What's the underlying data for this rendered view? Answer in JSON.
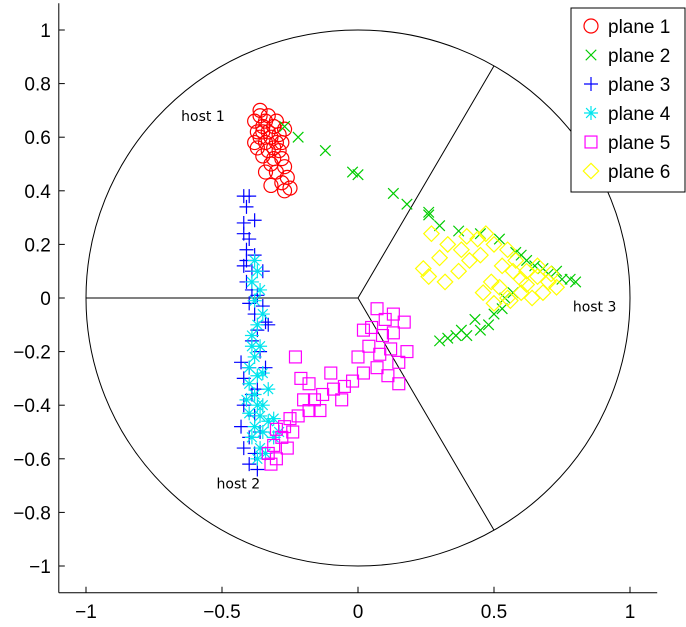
{
  "chart_data": {
    "type": "scatter",
    "xlim": [
      -1.1,
      1.1
    ],
    "ylim": [
      -1.1,
      1.1
    ],
    "x_ticks": [
      -1,
      -0.5,
      0,
      0.5,
      1
    ],
    "x_tick_labels": [
      "−1",
      "−0.5",
      "0",
      "0.5",
      "1"
    ],
    "y_ticks": [
      -1,
      -0.8,
      -0.6,
      -0.4,
      -0.2,
      0,
      0.2,
      0.4,
      0.6,
      0.8,
      1
    ],
    "y_tick_labels": [
      "−1",
      "−0.8",
      "−0.6",
      "−0.4",
      "−0.2",
      "0",
      "0.2",
      "0.4",
      "0.6",
      "0.8",
      "1"
    ],
    "grid": false,
    "legend_position": "top-right",
    "circle_radius": 1,
    "sector_angles_deg": [
      60,
      180,
      300
    ],
    "annotations": [
      {
        "text": "host 1",
        "x": -0.57,
        "y": 0.66
      },
      {
        "text": "host 2",
        "x": -0.44,
        "y": -0.71
      },
      {
        "text": "host 3",
        "x": 0.87,
        "y": -0.05
      }
    ],
    "series": [
      {
        "name": "plane 1",
        "marker": "circle",
        "color": "#ff0000",
        "points": [
          [
            -0.36,
            0.68
          ],
          [
            -0.34,
            0.66
          ],
          [
            -0.38,
            0.66
          ],
          [
            -0.35,
            0.64
          ],
          [
            -0.33,
            0.62
          ],
          [
            -0.37,
            0.62
          ],
          [
            -0.32,
            0.6
          ],
          [
            -0.36,
            0.6
          ],
          [
            -0.34,
            0.58
          ],
          [
            -0.3,
            0.58
          ],
          [
            -0.38,
            0.58
          ],
          [
            -0.33,
            0.55
          ],
          [
            -0.29,
            0.55
          ],
          [
            -0.35,
            0.53
          ],
          [
            -0.31,
            0.52
          ],
          [
            -0.28,
            0.52
          ],
          [
            -0.32,
            0.5
          ],
          [
            -0.27,
            0.49
          ],
          [
            -0.3,
            0.47
          ],
          [
            -0.34,
            0.47
          ],
          [
            -0.26,
            0.45
          ],
          [
            -0.28,
            0.43
          ],
          [
            -0.25,
            0.41
          ],
          [
            -0.32,
            0.42
          ],
          [
            -0.27,
            0.4
          ],
          [
            -0.35,
            0.62
          ],
          [
            -0.31,
            0.64
          ],
          [
            -0.29,
            0.61
          ],
          [
            -0.37,
            0.56
          ],
          [
            -0.33,
            0.68
          ],
          [
            -0.3,
            0.66
          ],
          [
            -0.27,
            0.63
          ],
          [
            -0.28,
            0.58
          ],
          [
            -0.31,
            0.56
          ],
          [
            -0.36,
            0.7
          ]
        ]
      },
      {
        "name": "plane 2",
        "marker": "x",
        "color": "#00cc00",
        "points": [
          [
            -0.27,
            0.64
          ],
          [
            -0.22,
            0.6
          ],
          [
            -0.12,
            0.55
          ],
          [
            -0.02,
            0.47
          ],
          [
            0.0,
            0.46
          ],
          [
            0.13,
            0.39
          ],
          [
            0.18,
            0.35
          ],
          [
            0.26,
            0.31
          ],
          [
            0.26,
            0.32
          ],
          [
            0.3,
            0.27
          ],
          [
            0.37,
            0.25
          ],
          [
            0.45,
            0.24
          ],
          [
            0.52,
            0.22
          ],
          [
            0.58,
            0.17
          ],
          [
            0.62,
            0.14
          ],
          [
            0.68,
            0.11
          ],
          [
            0.73,
            0.1
          ],
          [
            0.78,
            0.07
          ],
          [
            0.8,
            0.06
          ],
          [
            0.75,
            0.07
          ],
          [
            0.7,
            0.09
          ],
          [
            0.65,
            0.12
          ],
          [
            0.57,
            0.02
          ],
          [
            0.54,
            0.0
          ],
          [
            0.53,
            -0.04
          ],
          [
            0.5,
            -0.06
          ],
          [
            0.48,
            -0.1
          ],
          [
            0.45,
            -0.12
          ],
          [
            0.4,
            -0.14
          ],
          [
            0.36,
            -0.14
          ],
          [
            0.33,
            -0.15
          ],
          [
            0.3,
            -0.16
          ],
          [
            0.38,
            -0.12
          ],
          [
            0.43,
            -0.08
          ],
          [
            0.6,
            0.16
          ]
        ]
      },
      {
        "name": "plane 3",
        "marker": "plus",
        "color": "#0000ff",
        "points": [
          [
            -0.42,
            0.38
          ],
          [
            -0.4,
            0.38
          ],
          [
            -0.41,
            0.34
          ],
          [
            -0.38,
            0.29
          ],
          [
            -0.42,
            0.28
          ],
          [
            -0.42,
            0.24
          ],
          [
            -0.4,
            0.22
          ],
          [
            -0.41,
            0.18
          ],
          [
            -0.38,
            0.16
          ],
          [
            -0.42,
            0.12
          ],
          [
            -0.39,
            0.1
          ],
          [
            -0.35,
            0.1
          ],
          [
            -0.41,
            0.06
          ],
          [
            -0.39,
            0.03
          ],
          [
            -0.37,
            0.01
          ],
          [
            -0.4,
            -0.02
          ],
          [
            -0.35,
            -0.03
          ],
          [
            -0.38,
            -0.06
          ],
          [
            -0.34,
            -0.09
          ],
          [
            -0.37,
            -0.12
          ],
          [
            -0.39,
            -0.16
          ],
          [
            -0.36,
            -0.2
          ],
          [
            -0.34,
            -0.26
          ],
          [
            -0.4,
            -0.26
          ],
          [
            -0.42,
            -0.3
          ],
          [
            -0.37,
            -0.34
          ],
          [
            -0.42,
            -0.4
          ],
          [
            -0.38,
            -0.44
          ],
          [
            -0.43,
            -0.48
          ],
          [
            -0.4,
            -0.52
          ],
          [
            -0.42,
            -0.56
          ],
          [
            -0.38,
            -0.58
          ],
          [
            -0.4,
            -0.62
          ],
          [
            -0.37,
            -0.64
          ],
          [
            -0.33,
            -0.1
          ],
          [
            -0.41,
            0.14
          ],
          [
            -0.39,
            -0.36
          ],
          [
            -0.36,
            -0.5
          ],
          [
            -0.43,
            -0.24
          ]
        ]
      },
      {
        "name": "plane 4",
        "marker": "asterisk",
        "color": "#00e5ee",
        "points": [
          [
            -0.38,
            0.14
          ],
          [
            -0.37,
            0.1
          ],
          [
            -0.39,
            0.06
          ],
          [
            -0.36,
            0.03
          ],
          [
            -0.38,
            -0.01
          ],
          [
            -0.35,
            -0.06
          ],
          [
            -0.37,
            -0.1
          ],
          [
            -0.39,
            -0.14
          ],
          [
            -0.36,
            -0.18
          ],
          [
            -0.38,
            -0.22
          ],
          [
            -0.4,
            -0.26
          ],
          [
            -0.37,
            -0.29
          ],
          [
            -0.4,
            -0.32
          ],
          [
            -0.38,
            -0.36
          ],
          [
            -0.41,
            -0.38
          ],
          [
            -0.37,
            -0.4
          ],
          [
            -0.4,
            -0.43
          ],
          [
            -0.36,
            -0.44
          ],
          [
            -0.38,
            -0.48
          ],
          [
            -0.35,
            -0.5
          ],
          [
            -0.39,
            -0.52
          ],
          [
            -0.36,
            -0.56
          ],
          [
            -0.34,
            -0.58
          ],
          [
            -0.31,
            -0.52
          ],
          [
            -0.33,
            -0.46
          ],
          [
            -0.35,
            -0.4
          ],
          [
            -0.33,
            -0.34
          ],
          [
            -0.35,
            -0.28
          ],
          [
            -0.31,
            -0.45
          ],
          [
            -0.29,
            -0.5
          ],
          [
            -0.37,
            -0.6
          ],
          [
            -0.39,
            -0.18
          ]
        ]
      },
      {
        "name": "plane 5",
        "marker": "square",
        "color": "#ff00ff",
        "points": [
          [
            0.07,
            -0.04
          ],
          [
            0.1,
            -0.08
          ],
          [
            0.13,
            -0.06
          ],
          [
            0.17,
            -0.09
          ],
          [
            0.05,
            -0.11
          ],
          [
            0.02,
            -0.12
          ],
          [
            0.09,
            -0.14
          ],
          [
            0.13,
            -0.13
          ],
          [
            0.04,
            -0.18
          ],
          [
            0.08,
            -0.21
          ],
          [
            0.12,
            -0.19
          ],
          [
            0.18,
            -0.2
          ],
          [
            0.15,
            -0.24
          ],
          [
            0.07,
            -0.26
          ],
          [
            0.02,
            -0.28
          ],
          [
            -0.02,
            -0.31
          ],
          [
            -0.05,
            -0.33
          ],
          [
            -0.09,
            -0.34
          ],
          [
            -0.13,
            -0.36
          ],
          [
            -0.16,
            -0.38
          ],
          [
            -0.2,
            -0.38
          ],
          [
            -0.18,
            -0.42
          ],
          [
            -0.22,
            -0.44
          ],
          [
            -0.25,
            -0.45
          ],
          [
            -0.27,
            -0.48
          ],
          [
            -0.3,
            -0.49
          ],
          [
            -0.28,
            -0.52
          ],
          [
            -0.31,
            -0.55
          ],
          [
            -0.33,
            -0.58
          ],
          [
            -0.3,
            -0.6
          ],
          [
            -0.32,
            -0.62
          ],
          [
            -0.26,
            -0.56
          ],
          [
            -0.24,
            -0.5
          ],
          [
            -0.21,
            -0.3
          ],
          [
            -0.23,
            -0.22
          ],
          [
            -0.18,
            -0.32
          ],
          [
            -0.1,
            -0.28
          ],
          [
            -0.14,
            -0.42
          ],
          [
            0.0,
            -0.22
          ],
          [
            0.11,
            -0.29
          ],
          [
            -0.06,
            -0.38
          ],
          [
            0.15,
            -0.32
          ]
        ]
      },
      {
        "name": "plane 6",
        "marker": "diamond",
        "color": "#ffff00",
        "points": [
          [
            0.27,
            0.24
          ],
          [
            0.33,
            0.2
          ],
          [
            0.38,
            0.18
          ],
          [
            0.41,
            0.14
          ],
          [
            0.37,
            0.1
          ],
          [
            0.32,
            0.06
          ],
          [
            0.26,
            0.08
          ],
          [
            0.24,
            0.11
          ],
          [
            0.3,
            0.15
          ],
          [
            0.44,
            0.22
          ],
          [
            0.47,
            0.24
          ],
          [
            0.5,
            0.2
          ],
          [
            0.55,
            0.18
          ],
          [
            0.58,
            0.14
          ],
          [
            0.62,
            0.1
          ],
          [
            0.66,
            0.08
          ],
          [
            0.7,
            0.06
          ],
          [
            0.73,
            0.04
          ],
          [
            0.68,
            0.02
          ],
          [
            0.64,
            0.0
          ],
          [
            0.6,
            0.02
          ],
          [
            0.55,
            0.0
          ],
          [
            0.52,
            0.04
          ],
          [
            0.49,
            0.06
          ],
          [
            0.46,
            0.02
          ],
          [
            0.5,
            -0.02
          ],
          [
            0.56,
            -0.01
          ],
          [
            0.62,
            0.05
          ],
          [
            0.57,
            0.1
          ],
          [
            0.45,
            0.16
          ],
          [
            0.4,
            0.23
          ],
          [
            0.66,
            0.12
          ],
          [
            0.71,
            0.09
          ],
          [
            0.53,
            0.12
          ],
          [
            0.6,
            0.07
          ]
        ]
      }
    ]
  }
}
